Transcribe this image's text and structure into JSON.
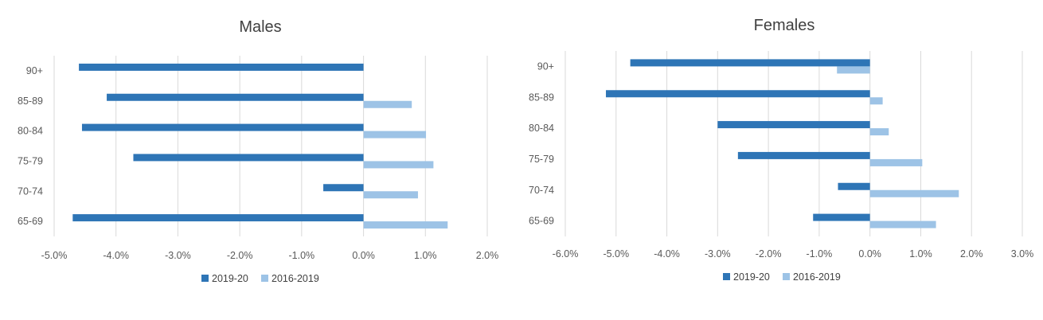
{
  "colors": {
    "series_dark": "#2E75B6",
    "series_light": "#9DC3E6",
    "grid": "#D9D9D9",
    "text": "#595959"
  },
  "chart_data": [
    {
      "type": "bar",
      "orientation": "horizontal",
      "title": "Males",
      "categories": [
        "90+",
        "85-89",
        "80-84",
        "75-79",
        "70-74",
        "65-69"
      ],
      "series": [
        {
          "name": "2019-20",
          "values": [
            -4.6,
            -4.15,
            -4.55,
            -3.72,
            -0.65,
            -4.7
          ]
        },
        {
          "name": "2016-2019",
          "values": [
            0.0,
            0.78,
            1.01,
            1.13,
            0.88,
            1.36
          ]
        }
      ],
      "xlim": [
        -5.0,
        2.0
      ],
      "xticks": [
        -5,
        -4,
        -3,
        -2,
        -1,
        0,
        1,
        2
      ],
      "xtick_labels": [
        "-5.0%",
        "-4.0%",
        "-3.0%",
        "-2.0%",
        "-1.0%",
        "0.0%",
        "1.0%",
        "2.0%"
      ],
      "grid": true,
      "legend": "bottom"
    },
    {
      "type": "bar",
      "orientation": "horizontal",
      "title": "Females",
      "categories": [
        "90+",
        "85-89",
        "80-84",
        "75-79",
        "70-74",
        "65-69"
      ],
      "series": [
        {
          "name": "2019-20",
          "values": [
            -4.72,
            -5.2,
            -3.0,
            -2.6,
            -0.63,
            -1.12
          ]
        },
        {
          "name": "2016-2019",
          "values": [
            -0.65,
            0.25,
            0.37,
            1.03,
            1.75,
            1.3
          ]
        }
      ],
      "xlim": [
        -6.0,
        3.0
      ],
      "xticks": [
        -6,
        -5,
        -4,
        -3,
        -2,
        -1,
        0,
        1,
        2,
        3
      ],
      "xtick_labels": [
        "-6.0%",
        "-5.0%",
        "-4.0%",
        "-3.0%",
        "-2.0%",
        "-1.0%",
        "0.0%",
        "1.0%",
        "2.0%",
        "3.0%"
      ],
      "grid": true,
      "legend": "bottom"
    }
  ]
}
